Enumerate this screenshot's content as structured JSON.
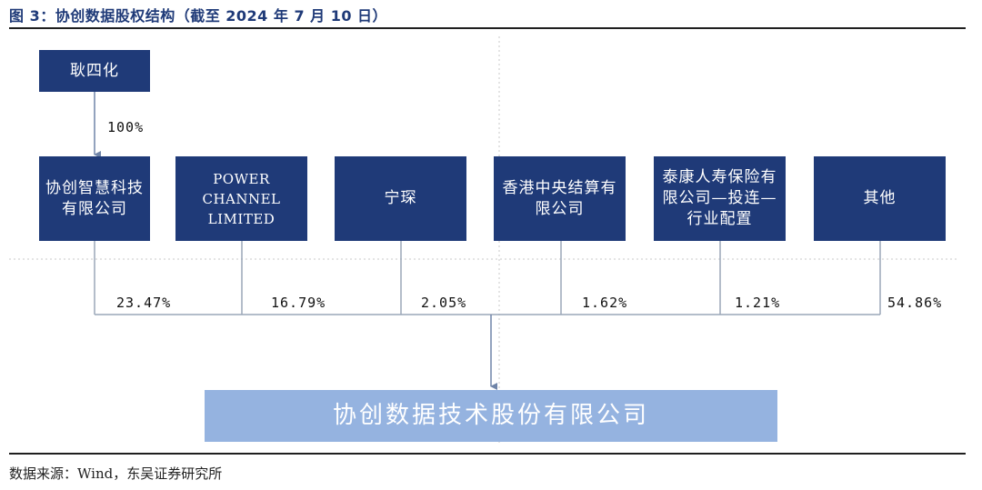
{
  "title": "图 3：协创数据股权结构（截至 2024 年 7 月 10 日）",
  "top_holder": {
    "name": "耿四化",
    "share": "100%"
  },
  "shareholders": [
    {
      "name": "协创智慧科技有限公司",
      "share": "23.47%"
    },
    {
      "name": "POWER CHANNEL LIMITED",
      "share": "16.79%"
    },
    {
      "name": "宁琛",
      "share": "2.05%"
    },
    {
      "name": "香港中央结算有限公司",
      "share": "1.62%"
    },
    {
      "name": "泰康人寿保险有限公司—投连—行业配置",
      "share": "1.21%"
    },
    {
      "name": "其他",
      "share": "54.86%"
    }
  ],
  "company": "协创数据技术股份有限公司",
  "source": "数据来源：Wind，东吴证券研究所",
  "colors": {
    "box": "#1f3a78",
    "company_box": "#95b3e0",
    "line": "#9aa7b8"
  }
}
